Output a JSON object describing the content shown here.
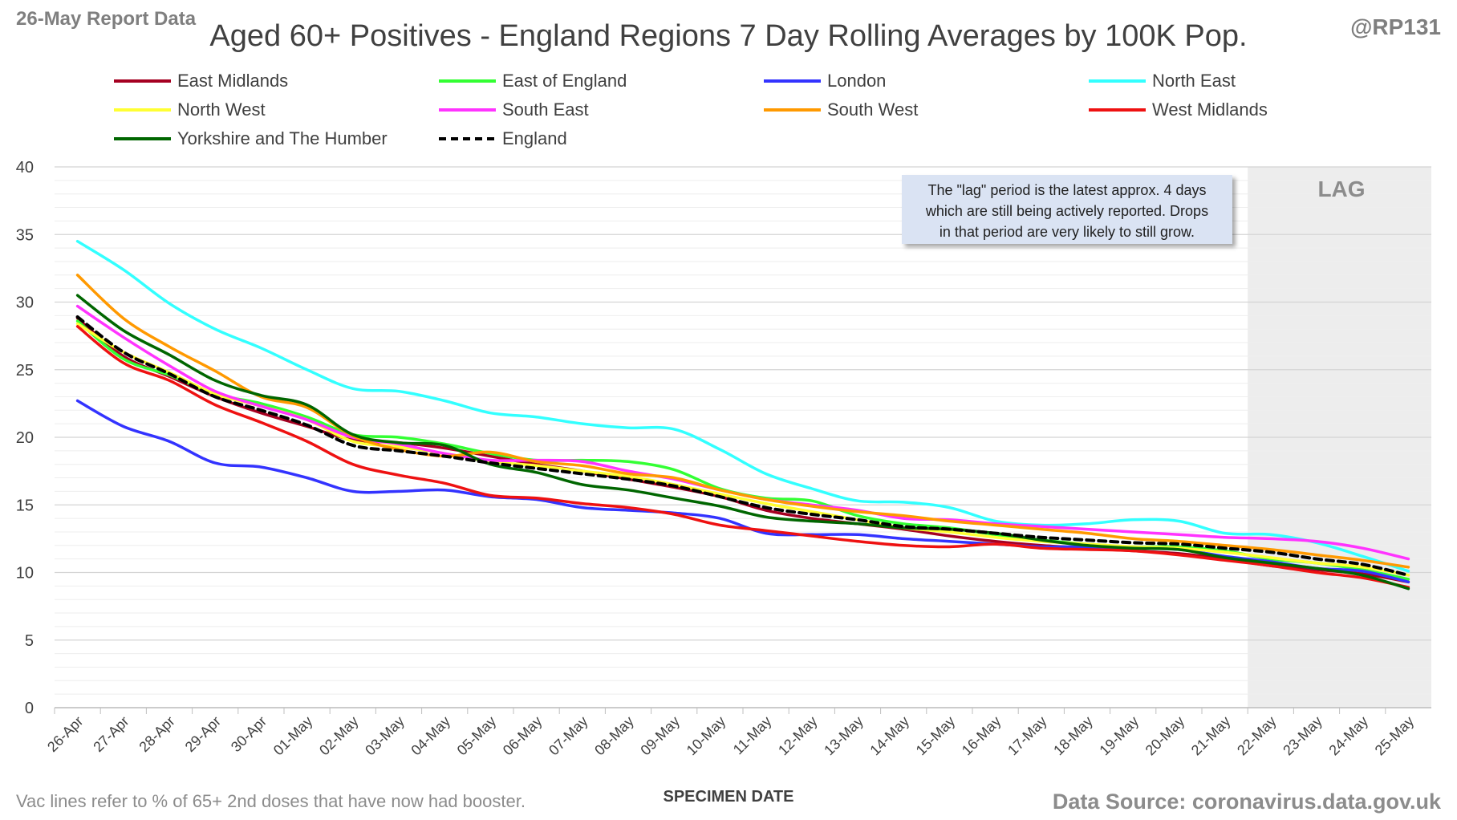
{
  "header": {
    "report_tag": "26-May Report Data",
    "handle": "@RP131"
  },
  "note": {
    "line1": "The \"lag\" period is the latest approx. 4 days",
    "line2": "which are still being actively reported. Drops",
    "line3": "in that period are very likely to still grow."
  },
  "lag_label": "LAG",
  "footer": {
    "left": "Vac lines refer to % of 65+ 2nd doses that have now had booster.",
    "right": "Data Source: coronavirus.data.gov.uk"
  },
  "chart_data": {
    "type": "line",
    "title": "Aged 60+ Positives - England Regions 7 Day Rolling Averages by 100K Pop.",
    "xlabel": "SPECIMEN DATE",
    "ylabel": "",
    "ylim": [
      0,
      40
    ],
    "yticks": [
      0,
      5,
      10,
      15,
      20,
      25,
      30,
      35,
      40
    ],
    "grid": true,
    "legend_position": "top",
    "lag_start": "21-May",
    "x": [
      "26-Apr",
      "27-Apr",
      "28-Apr",
      "29-Apr",
      "30-Apr",
      "01-May",
      "02-May",
      "03-May",
      "04-May",
      "05-May",
      "06-May",
      "07-May",
      "08-May",
      "09-May",
      "10-May",
      "11-May",
      "12-May",
      "13-May",
      "14-May",
      "15-May",
      "16-May",
      "17-May",
      "18-May",
      "19-May",
      "20-May",
      "21-May",
      "22-May",
      "23-May",
      "24-May",
      "25-May"
    ],
    "series": [
      {
        "name": "East Midlands",
        "color": "#a50021",
        "dashed": false,
        "values": [
          28.8,
          26.0,
          24.5,
          23.0,
          21.8,
          20.8,
          19.8,
          19.6,
          19.2,
          18.6,
          18.0,
          17.5,
          16.9,
          16.3,
          15.6,
          14.6,
          14.0,
          13.6,
          13.2,
          12.7,
          12.3,
          12.0,
          11.8,
          11.6,
          11.4,
          11.0,
          10.5,
          10.2,
          9.9,
          9.3
        ]
      },
      {
        "name": "East of England",
        "color": "#33ff33",
        "dashed": false,
        "values": [
          28.6,
          25.8,
          24.6,
          23.2,
          22.5,
          21.5,
          20.2,
          20.0,
          19.5,
          18.8,
          18.3,
          18.3,
          18.2,
          17.6,
          16.2,
          15.5,
          15.3,
          14.2,
          13.6,
          13.3,
          12.8,
          12.4,
          12.1,
          11.9,
          11.9,
          11.6,
          11.0,
          10.7,
          10.2,
          9.5
        ]
      },
      {
        "name": "London",
        "color": "#3333ff",
        "dashed": false,
        "values": [
          22.7,
          20.8,
          19.7,
          18.1,
          17.8,
          17.0,
          16.0,
          16.0,
          16.1,
          15.6,
          15.4,
          14.8,
          14.6,
          14.4,
          14.0,
          12.9,
          12.8,
          12.8,
          12.5,
          12.3,
          12.1,
          11.9,
          11.9,
          11.8,
          11.7,
          11.2,
          10.8,
          10.3,
          10.1,
          9.3
        ]
      },
      {
        "name": "North East",
        "color": "#33ffff",
        "dashed": false,
        "values": [
          34.5,
          32.4,
          29.9,
          28.0,
          26.6,
          25.0,
          23.6,
          23.4,
          22.7,
          21.8,
          21.5,
          21.0,
          20.7,
          20.6,
          19.1,
          17.3,
          16.2,
          15.3,
          15.2,
          14.8,
          13.8,
          13.5,
          13.6,
          13.9,
          13.8,
          12.9,
          12.8,
          12.2,
          11.2,
          10.1
        ]
      },
      {
        "name": "North West",
        "color": "#ffff33",
        "dashed": false,
        "values": [
          28.4,
          26.3,
          24.8,
          23.2,
          22.3,
          21.3,
          19.7,
          19.3,
          18.8,
          18.2,
          17.9,
          17.5,
          17.1,
          16.5,
          15.8,
          15.1,
          14.5,
          13.9,
          13.3,
          13.0,
          12.6,
          12.3,
          12.1,
          11.9,
          11.8,
          11.5,
          11.1,
          10.7,
          10.4,
          9.8
        ]
      },
      {
        "name": "South East",
        "color": "#ff33ff",
        "dashed": false,
        "values": [
          29.7,
          27.4,
          25.3,
          23.4,
          22.3,
          21.3,
          20.0,
          19.5,
          18.8,
          18.3,
          18.3,
          18.2,
          17.5,
          16.9,
          16.1,
          15.4,
          15.0,
          14.6,
          14.0,
          13.9,
          13.6,
          13.4,
          13.2,
          13.0,
          12.8,
          12.6,
          12.5,
          12.3,
          11.8,
          11.0
        ]
      },
      {
        "name": "South West",
        "color": "#ff9900",
        "dashed": false,
        "values": [
          32.0,
          28.8,
          26.7,
          24.9,
          23.0,
          22.2,
          20.1,
          19.1,
          18.6,
          18.9,
          18.2,
          17.9,
          17.3,
          17.0,
          16.1,
          15.4,
          14.9,
          14.5,
          14.2,
          13.8,
          13.5,
          13.2,
          12.9,
          12.5,
          12.3,
          12.0,
          11.7,
          11.3,
          10.9,
          10.4
        ]
      },
      {
        "name": "West Midlands",
        "color": "#ee1111",
        "dashed": false,
        "values": [
          28.2,
          25.5,
          24.2,
          22.4,
          21.1,
          19.7,
          18.0,
          17.2,
          16.6,
          15.7,
          15.5,
          15.1,
          14.8,
          14.3,
          13.5,
          13.1,
          12.7,
          12.3,
          12.0,
          11.9,
          12.1,
          11.8,
          11.7,
          11.6,
          11.3,
          10.9,
          10.5,
          10.0,
          9.6,
          8.9
        ]
      },
      {
        "name": "Yorkshire and The Humber",
        "color": "#006600",
        "dashed": false,
        "values": [
          30.5,
          27.9,
          26.1,
          24.2,
          23.1,
          22.4,
          20.2,
          19.6,
          19.4,
          18.0,
          17.4,
          16.5,
          16.1,
          15.5,
          14.9,
          14.1,
          13.8,
          13.6,
          13.3,
          13.2,
          12.9,
          12.4,
          12.0,
          11.8,
          11.7,
          11.1,
          10.7,
          10.3,
          9.8,
          8.8
        ]
      },
      {
        "name": "England",
        "color": "#000000",
        "dashed": true,
        "values": [
          28.9,
          26.3,
          24.7,
          23.0,
          22.0,
          20.9,
          19.4,
          19.0,
          18.6,
          18.1,
          17.7,
          17.3,
          16.9,
          16.4,
          15.6,
          14.8,
          14.3,
          13.9,
          13.4,
          13.2,
          12.9,
          12.6,
          12.4,
          12.2,
          12.1,
          11.8,
          11.5,
          11.0,
          10.6,
          9.8
        ]
      }
    ]
  }
}
